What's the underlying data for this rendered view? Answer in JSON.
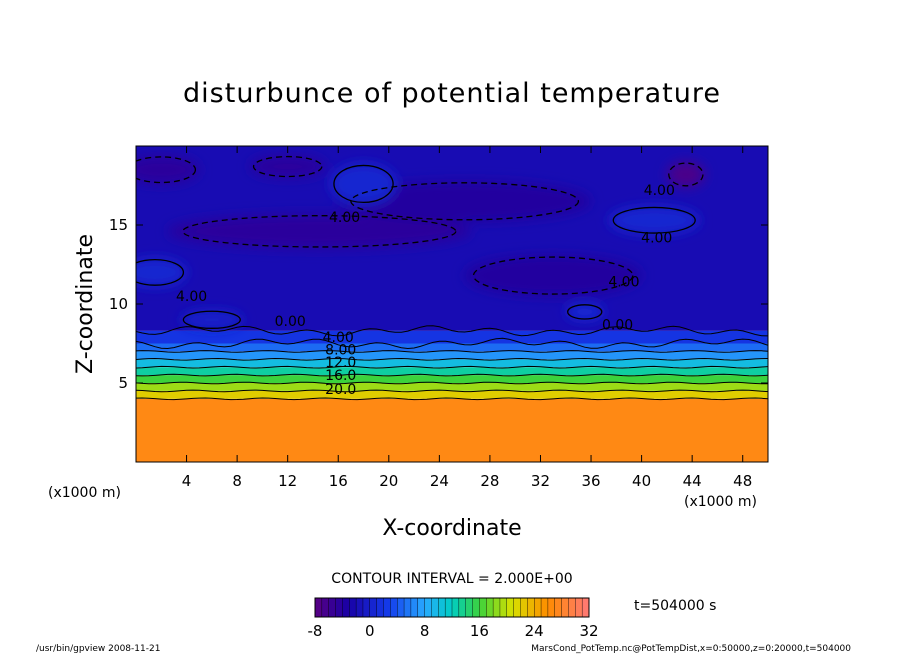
{
  "chart_data": {
    "type": "heatmap",
    "title": "disturbunce of potential temperature",
    "xlabel": "X-coordinate",
    "ylabel": "Z-coordinate",
    "x_unit": "(x1000 m)",
    "z_unit": "(x1000 m)",
    "xlim": [
      0,
      50
    ],
    "zlim": [
      0,
      20
    ],
    "x_ticks": [
      4,
      8,
      12,
      16,
      20,
      24,
      28,
      32,
      36,
      40,
      44,
      48
    ],
    "z_ticks": [
      5,
      10,
      15
    ],
    "contour_interval_text": "CONTOUR INTERVAL = 2.000E+00",
    "time_text": "t=504000 s",
    "colorbar": {
      "min": -8,
      "max": 32,
      "ticks": [
        -8,
        0,
        8,
        16,
        24,
        32
      ]
    },
    "contour_labels": [
      {
        "text": "4.00",
        "x": 16.5,
        "z": 15.2
      },
      {
        "text": "4.00",
        "x": 41.4,
        "z": 16.9
      },
      {
        "text": "4.00",
        "x": 41.2,
        "z": 13.9
      },
      {
        "text": "4.00",
        "x": 38.6,
        "z": 11.1
      },
      {
        "text": "4.00",
        "x": 4.4,
        "z": 10.2
      },
      {
        "text": "0.00",
        "x": 12.2,
        "z": 8.6
      },
      {
        "text": "0.00",
        "x": 38.1,
        "z": 8.4
      },
      {
        "text": "4.00",
        "x": 16.0,
        "z": 7.6
      },
      {
        "text": "8.00",
        "x": 16.2,
        "z": 6.8
      },
      {
        "text": "12.0",
        "x": 16.2,
        "z": 6.0
      },
      {
        "text": "16.0",
        "x": 16.2,
        "z": 5.2
      },
      {
        "text": "20.0",
        "x": 16.2,
        "z": 4.3
      }
    ],
    "layers": [
      {
        "z_from": 0,
        "z_to": 4.0,
        "value": 27
      },
      {
        "z_from": 4.0,
        "z_to": 4.5,
        "value": 22
      },
      {
        "z_from": 4.5,
        "z_to": 5.0,
        "value": 19
      },
      {
        "z_from": 5.0,
        "z_to": 5.5,
        "value": 16
      },
      {
        "z_from": 5.5,
        "z_to": 6.0,
        "value": 13
      },
      {
        "z_from": 6.0,
        "z_to": 6.5,
        "value": 10
      },
      {
        "z_from": 6.5,
        "z_to": 7.0,
        "value": 7
      },
      {
        "z_from": 7.0,
        "z_to": 7.5,
        "value": 5
      },
      {
        "z_from": 7.5,
        "z_to": 8.3,
        "value": 2
      },
      {
        "z_from": 8.3,
        "z_to": 20,
        "value": -2
      }
    ],
    "blobs": [
      {
        "x": 14.5,
        "z": 14.6,
        "rx": 12,
        "rz": 1.1,
        "value": -4.5
      },
      {
        "x": 26,
        "z": 16.5,
        "rx": 10,
        "rz": 1.3,
        "value": -4
      },
      {
        "x": 33,
        "z": 11.8,
        "rx": 7,
        "rz": 1.3,
        "value": -4
      },
      {
        "x": 2,
        "z": 18.5,
        "rx": 3,
        "rz": 0.9,
        "value": -4.5
      },
      {
        "x": 12,
        "z": 18.7,
        "rx": 3,
        "rz": 0.7,
        "value": -4.5
      },
      {
        "x": 18,
        "z": 17.6,
        "rx": 2.6,
        "rz": 1.3,
        "value": 0.5
      },
      {
        "x": 41,
        "z": 15.3,
        "rx": 3.6,
        "rz": 0.9,
        "value": 0.5
      },
      {
        "x": 1.5,
        "z": 12.0,
        "rx": 2.5,
        "rz": 0.9,
        "value": 0.5
      },
      {
        "x": 43.5,
        "z": 18.2,
        "rx": 1.5,
        "rz": 0.8,
        "value": -7
      },
      {
        "x": 35.5,
        "z": 9.5,
        "rx": 1.5,
        "rz": 0.5,
        "value": 1
      },
      {
        "x": 6,
        "z": 9.0,
        "rx": 2.5,
        "rz": 0.6,
        "value": 0
      }
    ]
  },
  "footer": {
    "left": "/usr/bin/gpview   2008-11-21",
    "right": "MarsCond_PotTemp.nc@PotTempDist,x=0:50000,z=0:20000,t=504000"
  }
}
